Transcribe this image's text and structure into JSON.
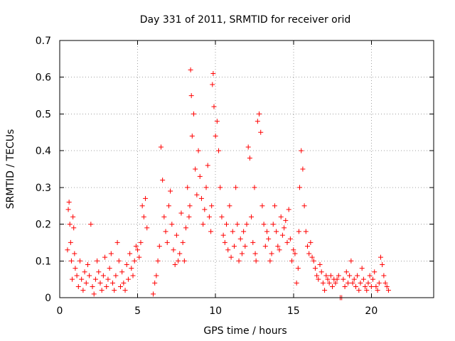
{
  "chart_data": {
    "type": "scatter",
    "title": "Day 331 of 2011, SRMTID for receiver orid",
    "xlabel": "GPS time / hours",
    "ylabel": "SRMTID / TECUs",
    "xlim": [
      0,
      24
    ],
    "ylim": [
      0,
      0.7
    ],
    "x_ticks": [
      0,
      5,
      10,
      15,
      20
    ],
    "y_ticks": [
      0,
      0.1,
      0.2,
      0.3,
      0.4,
      0.5,
      0.6,
      0.7
    ],
    "x_tick_labels": [
      "0",
      "5",
      "10",
      "15",
      "20"
    ],
    "y_tick_labels": [
      "0",
      "0.1",
      "0.2",
      "0.3",
      "0.4",
      "0.5",
      "0.6",
      "0.7"
    ],
    "grid": true,
    "marker": "+",
    "marker_color": "#ff0000",
    "series": [
      {
        "name": "SRMTID",
        "x": [
          0.5,
          0.55,
          0.6,
          0.65,
          0.7,
          0.75,
          0.8,
          0.85,
          0.9,
          0.95,
          1.0,
          1.1,
          1.2,
          1.3,
          1.4,
          1.5,
          1.6,
          1.7,
          1.8,
          1.9,
          2.0,
          2.1,
          2.2,
          2.3,
          2.4,
          2.5,
          2.6,
          2.7,
          2.8,
          2.9,
          3.0,
          3.1,
          3.2,
          3.3,
          3.4,
          3.5,
          3.6,
          3.7,
          3.8,
          3.9,
          4.0,
          4.1,
          4.2,
          4.3,
          4.4,
          4.5,
          4.6,
          4.7,
          4.8,
          4.9,
          5.0,
          5.1,
          5.2,
          5.3,
          5.4,
          5.5,
          5.6,
          6.0,
          6.1,
          6.2,
          6.3,
          6.4,
          6.5,
          6.6,
          6.7,
          6.8,
          6.9,
          7.0,
          7.1,
          7.2,
          7.3,
          7.4,
          7.5,
          7.6,
          7.7,
          7.8,
          7.9,
          8.0,
          8.1,
          8.2,
          8.3,
          8.35,
          8.4,
          8.45,
          8.5,
          8.6,
          8.7,
          8.8,
          8.9,
          9.0,
          9.1,
          9.2,
          9.3,
          9.4,
          9.5,
          9.6,
          9.7,
          9.75,
          9.8,
          9.85,
          9.9,
          10.0,
          10.1,
          10.2,
          10.3,
          10.4,
          10.5,
          10.6,
          10.7,
          10.8,
          10.9,
          11.0,
          11.1,
          11.2,
          11.3,
          11.4,
          11.5,
          11.6,
          11.7,
          11.8,
          11.9,
          12.0,
          12.1,
          12.2,
          12.3,
          12.4,
          12.5,
          12.55,
          12.6,
          12.7,
          12.8,
          12.9,
          13.0,
          13.1,
          13.2,
          13.3,
          13.4,
          13.5,
          13.6,
          13.7,
          13.8,
          13.9,
          14.0,
          14.1,
          14.2,
          14.3,
          14.4,
          14.5,
          14.6,
          14.7,
          14.8,
          14.9,
          15.0,
          15.1,
          15.2,
          15.3,
          15.35,
          15.4,
          15.5,
          15.6,
          15.7,
          15.8,
          15.9,
          16.0,
          16.1,
          16.2,
          16.3,
          16.4,
          16.5,
          16.6,
          16.7,
          16.8,
          16.9,
          17.0,
          17.1,
          17.2,
          17.3,
          17.4,
          17.5,
          17.6,
          17.7,
          17.8,
          17.9,
          18.0,
          18.1,
          18.2,
          18.3,
          18.4,
          18.5,
          18.6,
          18.7,
          18.8,
          18.9,
          19.0,
          19.1,
          19.2,
          19.3,
          19.4,
          19.5,
          19.6,
          19.7,
          19.8,
          19.9,
          20.0,
          20.1,
          20.2,
          20.3,
          20.4,
          20.5,
          20.6,
          20.7,
          20.8,
          20.9,
          21.0,
          21.1
        ],
        "y": [
          0.13,
          0.24,
          0.26,
          0.2,
          0.15,
          0.1,
          0.05,
          0.22,
          0.19,
          0.12,
          0.08,
          0.06,
          0.03,
          0.1,
          0.05,
          0.02,
          0.07,
          0.04,
          0.09,
          0.06,
          0.2,
          0.03,
          0.01,
          0.05,
          0.1,
          0.07,
          0.04,
          0.02,
          0.06,
          0.11,
          0.03,
          0.05,
          0.08,
          0.12,
          0.04,
          0.02,
          0.06,
          0.15,
          0.1,
          0.03,
          0.07,
          0.04,
          0.02,
          0.09,
          0.05,
          0.12,
          0.08,
          0.06,
          0.1,
          0.14,
          0.13,
          0.11,
          0.15,
          0.25,
          0.22,
          0.27,
          0.19,
          0.01,
          0.04,
          0.06,
          0.1,
          0.14,
          0.41,
          0.32,
          0.22,
          0.18,
          0.15,
          0.25,
          0.29,
          0.2,
          0.13,
          0.09,
          0.17,
          0.1,
          0.12,
          0.23,
          0.15,
          0.1,
          0.19,
          0.3,
          0.22,
          0.25,
          0.62,
          0.55,
          0.44,
          0.5,
          0.35,
          0.28,
          0.4,
          0.33,
          0.27,
          0.2,
          0.24,
          0.3,
          0.36,
          0.22,
          0.18,
          0.25,
          0.58,
          0.61,
          0.52,
          0.44,
          0.48,
          0.4,
          0.3,
          0.22,
          0.17,
          0.15,
          0.2,
          0.13,
          0.25,
          0.11,
          0.18,
          0.14,
          0.3,
          0.2,
          0.1,
          0.16,
          0.12,
          0.18,
          0.14,
          0.2,
          0.41,
          0.38,
          0.22,
          0.15,
          0.3,
          0.12,
          0.1,
          0.48,
          0.5,
          0.45,
          0.25,
          0.2,
          0.14,
          0.18,
          0.16,
          0.1,
          0.12,
          0.2,
          0.25,
          0.18,
          0.14,
          0.13,
          0.22,
          0.17,
          0.19,
          0.21,
          0.15,
          0.24,
          0.16,
          0.1,
          0.13,
          0.12,
          0.04,
          0.08,
          0.18,
          0.3,
          0.4,
          0.35,
          0.25,
          0.18,
          0.14,
          0.12,
          0.15,
          0.11,
          0.1,
          0.08,
          0.06,
          0.05,
          0.09,
          0.07,
          0.04,
          0.02,
          0.06,
          0.05,
          0.04,
          0.06,
          0.03,
          0.05,
          0.04,
          0.05,
          0.06,
          0.0,
          0.0,
          0.05,
          0.03,
          0.07,
          0.04,
          0.06,
          0.1,
          0.04,
          0.05,
          0.03,
          0.06,
          0.02,
          0.04,
          0.08,
          0.05,
          0.03,
          0.02,
          0.04,
          0.06,
          0.03,
          0.05,
          0.07,
          0.03,
          0.02,
          0.04,
          0.11,
          0.09,
          0.06,
          0.04,
          0.03,
          0.02
        ]
      }
    ]
  }
}
